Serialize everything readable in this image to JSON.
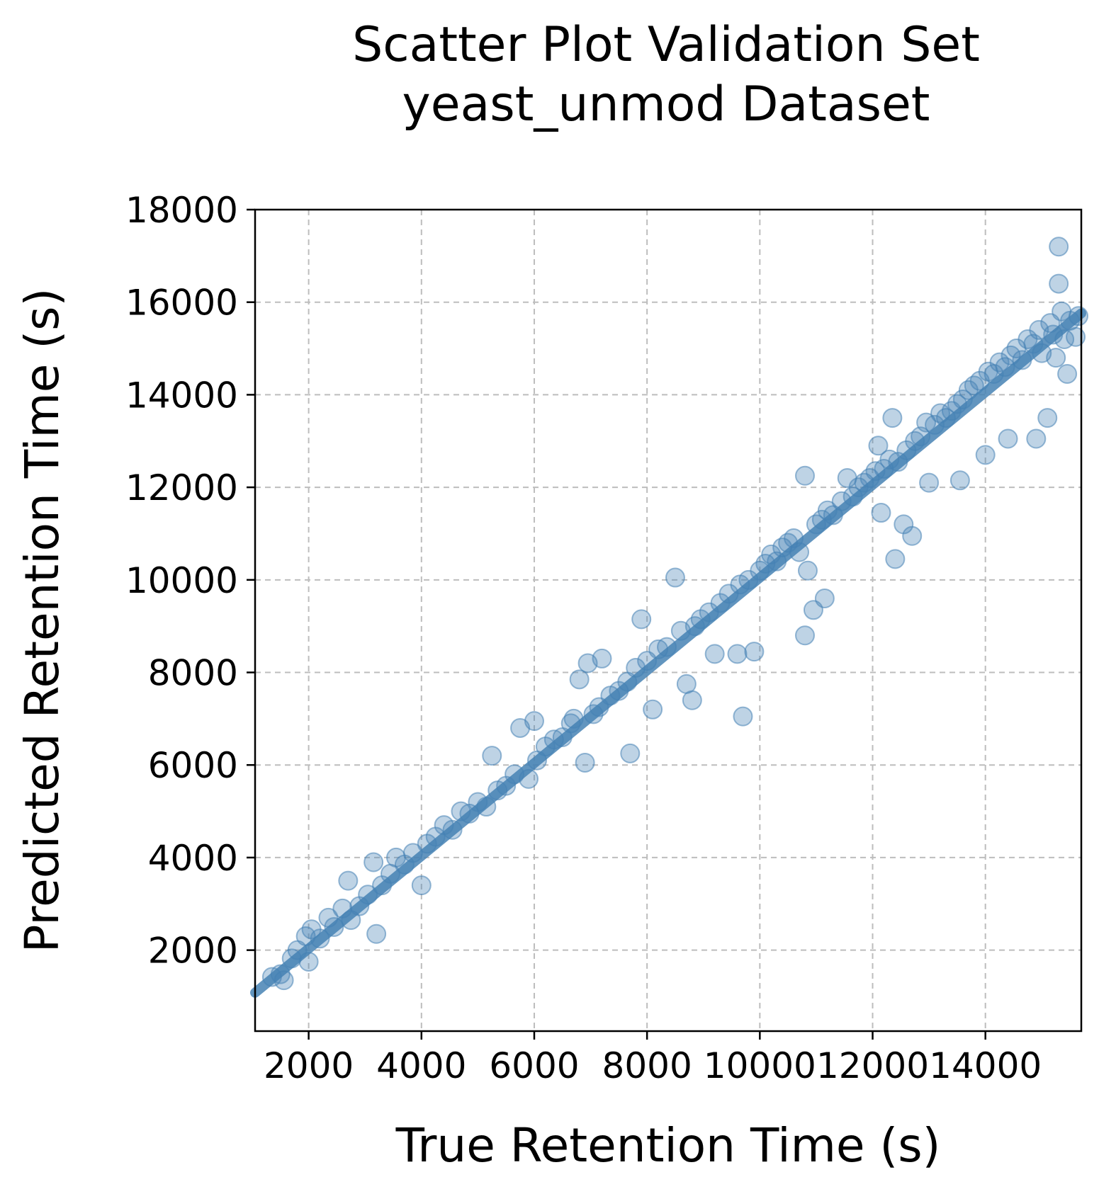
{
  "chart_data": {
    "type": "scatter",
    "title_lines": [
      "Scatter Plot Validation Set",
      "yeast_unmod Dataset"
    ],
    "xlabel": "True Retention Time (s)",
    "ylabel": "Predicted Retention Time (s)",
    "xlim": [
      1050,
      15700
    ],
    "ylim": [
      250,
      18000
    ],
    "xticks": [
      2000,
      4000,
      6000,
      8000,
      10000,
      12000,
      14000
    ],
    "yticks": [
      2000,
      4000,
      6000,
      8000,
      10000,
      12000,
      14000,
      16000,
      18000
    ],
    "grid": true,
    "point_color": "#4682b4",
    "point_opacity": 0.35,
    "fit_line": {
      "x": [
        1050,
        15700
      ],
      "y": [
        1080,
        15760
      ]
    },
    "points": [
      [
        1350,
        1420
      ],
      [
        1500,
        1480
      ],
      [
        1560,
        1350
      ],
      [
        1700,
        1820
      ],
      [
        1800,
        2000
      ],
      [
        1950,
        2300
      ],
      [
        2050,
        2450
      ],
      [
        2000,
        1750
      ],
      [
        2200,
        2250
      ],
      [
        2350,
        2700
      ],
      [
        2450,
        2500
      ],
      [
        2600,
        2900
      ],
      [
        2700,
        3500
      ],
      [
        2750,
        2650
      ],
      [
        2900,
        2950
      ],
      [
        3050,
        3200
      ],
      [
        3150,
        3900
      ],
      [
        3200,
        2350
      ],
      [
        3300,
        3400
      ],
      [
        3450,
        3650
      ],
      [
        3550,
        4000
      ],
      [
        3700,
        3850
      ],
      [
        3850,
        4100
      ],
      [
        4000,
        3400
      ],
      [
        4100,
        4300
      ],
      [
        4250,
        4450
      ],
      [
        4400,
        4700
      ],
      [
        4550,
        4600
      ],
      [
        4700,
        5000
      ],
      [
        4850,
        4950
      ],
      [
        5000,
        5200
      ],
      [
        5150,
        5100
      ],
      [
        5250,
        6200
      ],
      [
        5350,
        5450
      ],
      [
        5500,
        5550
      ],
      [
        5650,
        5800
      ],
      [
        5750,
        6800
      ],
      [
        5900,
        5700
      ],
      [
        6050,
        6100
      ],
      [
        6000,
        6950
      ],
      [
        6200,
        6400
      ],
      [
        6350,
        6550
      ],
      [
        6500,
        6600
      ],
      [
        6650,
        6900
      ],
      [
        6700,
        7000
      ],
      [
        6800,
        7850
      ],
      [
        6900,
        6050
      ],
      [
        6950,
        8200
      ],
      [
        7050,
        7100
      ],
      [
        7150,
        7250
      ],
      [
        7200,
        8300
      ],
      [
        7350,
        7500
      ],
      [
        7500,
        7600
      ],
      [
        7650,
        7800
      ],
      [
        7700,
        6250
      ],
      [
        7800,
        8100
      ],
      [
        7900,
        9150
      ],
      [
        8000,
        8250
      ],
      [
        8100,
        7200
      ],
      [
        8200,
        8500
      ],
      [
        8350,
        8550
      ],
      [
        8500,
        10050
      ],
      [
        8600,
        8900
      ],
      [
        8700,
        7750
      ],
      [
        8800,
        7400
      ],
      [
        8850,
        9000
      ],
      [
        8950,
        9150
      ],
      [
        9100,
        9300
      ],
      [
        9200,
        8400
      ],
      [
        9300,
        9500
      ],
      [
        9450,
        9700
      ],
      [
        9600,
        8400
      ],
      [
        9650,
        9900
      ],
      [
        9700,
        7050
      ],
      [
        9800,
        10000
      ],
      [
        9900,
        8450
      ],
      [
        10000,
        10200
      ],
      [
        10100,
        10350
      ],
      [
        10200,
        10550
      ],
      [
        10300,
        10400
      ],
      [
        10400,
        10700
      ],
      [
        10500,
        10800
      ],
      [
        10600,
        10900
      ],
      [
        10700,
        10600
      ],
      [
        10800,
        12250
      ],
      [
        10800,
        8800
      ],
      [
        10850,
        10200
      ],
      [
        10950,
        9350
      ],
      [
        11000,
        11200
      ],
      [
        11100,
        11300
      ],
      [
        11150,
        9600
      ],
      [
        11200,
        11500
      ],
      [
        11300,
        11400
      ],
      [
        11450,
        11700
      ],
      [
        11550,
        12200
      ],
      [
        11650,
        11800
      ],
      [
        11750,
        12000
      ],
      [
        11850,
        12100
      ],
      [
        11950,
        12200
      ],
      [
        12050,
        12350
      ],
      [
        12100,
        12900
      ],
      [
        12150,
        11450
      ],
      [
        12200,
        12400
      ],
      [
        12300,
        12600
      ],
      [
        12350,
        13500
      ],
      [
        12400,
        10450
      ],
      [
        12450,
        12550
      ],
      [
        12550,
        11200
      ],
      [
        12600,
        12800
      ],
      [
        12700,
        10950
      ],
      [
        12750,
        13000
      ],
      [
        12850,
        13100
      ],
      [
        12950,
        13400
      ],
      [
        13000,
        12100
      ],
      [
        13100,
        13350
      ],
      [
        13200,
        13600
      ],
      [
        13300,
        13500
      ],
      [
        13400,
        13650
      ],
      [
        13500,
        13800
      ],
      [
        13550,
        12150
      ],
      [
        13600,
        13900
      ],
      [
        13700,
        14100
      ],
      [
        13800,
        14200
      ],
      [
        13900,
        14300
      ],
      [
        14000,
        12700
      ],
      [
        14050,
        14500
      ],
      [
        14150,
        14450
      ],
      [
        14250,
        14700
      ],
      [
        14350,
        14600
      ],
      [
        14400,
        13050
      ],
      [
        14450,
        14850
      ],
      [
        14550,
        15000
      ],
      [
        14650,
        14750
      ],
      [
        14750,
        15200
      ],
      [
        14850,
        15100
      ],
      [
        14900,
        13050
      ],
      [
        14950,
        15400
      ],
      [
        15000,
        14900
      ],
      [
        15100,
        13500
      ],
      [
        15150,
        15550
      ],
      [
        15200,
        15300
      ],
      [
        15250,
        14800
      ],
      [
        15300,
        16400
      ],
      [
        15300,
        17200
      ],
      [
        15350,
        15800
      ],
      [
        15400,
        15200
      ],
      [
        15450,
        14450
      ],
      [
        15500,
        15600
      ],
      [
        15600,
        15250
      ],
      [
        15650,
        15700
      ]
    ]
  }
}
